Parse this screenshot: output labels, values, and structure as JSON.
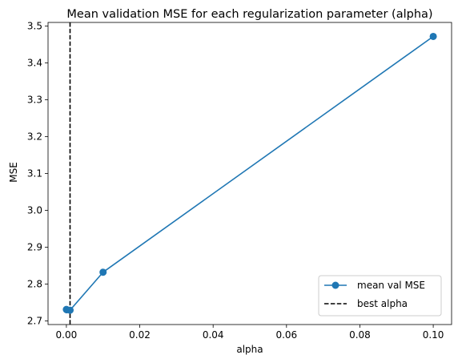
{
  "chart_data": {
    "type": "line",
    "title": "Mean validation MSE for each regularization parameter (alpha)",
    "xlabel": "alpha",
    "ylabel": "MSE",
    "xlim": [
      -0.005,
      0.105
    ],
    "ylim": [
      2.69,
      3.51
    ],
    "xticks": [
      0.0,
      0.02,
      0.04,
      0.06,
      0.08,
      0.1
    ],
    "xtick_labels": [
      "0.00",
      "0.02",
      "0.04",
      "0.06",
      "0.08",
      "0.10"
    ],
    "yticks": [
      2.7,
      2.8,
      2.9,
      3.0,
      3.1,
      3.2,
      3.3,
      3.4,
      3.5
    ],
    "ytick_labels": [
      "2.7",
      "2.8",
      "2.9",
      "3.0",
      "3.1",
      "3.2",
      "3.3",
      "3.4",
      "3.5"
    ],
    "grid": false,
    "legend_position": "lower-right",
    "series": [
      {
        "name": "mean val MSE",
        "color": "#1f77b4",
        "marker": "circle",
        "x": [
          0.0,
          0.0001,
          0.001,
          0.01,
          0.1
        ],
        "y": [
          2.731,
          2.73,
          2.729,
          2.832,
          3.472
        ]
      }
    ],
    "vline": {
      "name": "best alpha",
      "x": 0.001,
      "color": "#000000",
      "style": "dashed"
    }
  }
}
